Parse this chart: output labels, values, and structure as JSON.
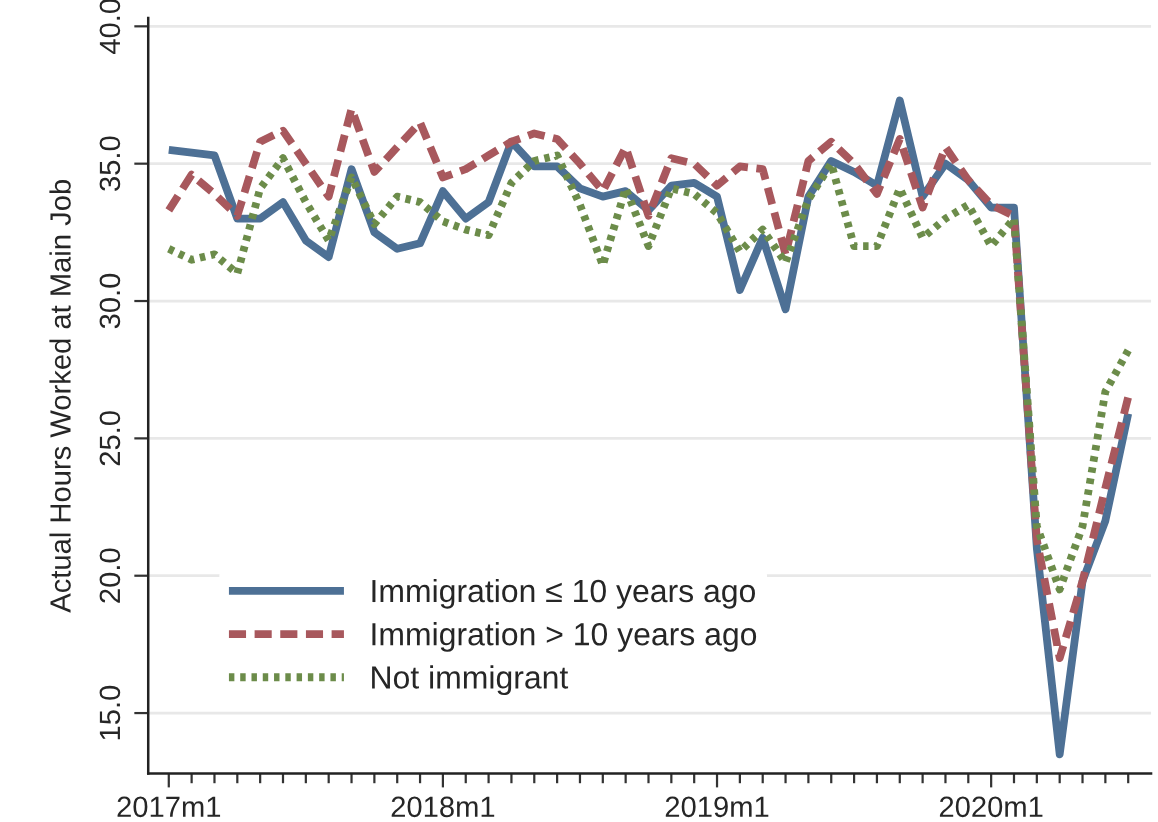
{
  "chart_data": {
    "type": "line",
    "ylabel": "Actual Hours Worked at Main Job",
    "categories": [
      "2017m1",
      null,
      null,
      null,
      null,
      null,
      null,
      null,
      null,
      null,
      null,
      null,
      "2018m1",
      null,
      null,
      null,
      null,
      null,
      null,
      null,
      null,
      null,
      null,
      null,
      "2019m1",
      null,
      null,
      null,
      null,
      null,
      null,
      null,
      null,
      null,
      null,
      null,
      "2020m1",
      null,
      null,
      null,
      null,
      null,
      null
    ],
    "series": [
      {
        "name": "Immigration ≤ 10 years ago",
        "color": "#4d7095",
        "line_style": "solid",
        "values": [
          35.5,
          35.4,
          35.3,
          33.0,
          33.0,
          33.6,
          32.2,
          31.6,
          34.8,
          32.5,
          31.9,
          32.1,
          34.0,
          33.0,
          33.6,
          35.8,
          34.9,
          34.9,
          34.1,
          33.8,
          34.0,
          33.3,
          34.2,
          34.3,
          33.8,
          30.4,
          32.3,
          29.7,
          33.8,
          35.1,
          34.7,
          34.2,
          37.3,
          33.8,
          35.0,
          34.4,
          33.4,
          33.4,
          21.0,
          13.5,
          19.8,
          22.0,
          25.9
        ]
      },
      {
        "name": "Immigration > 10 years ago",
        "color": "#a8585d",
        "line_style": "dashed",
        "values": [
          33.3,
          34.6,
          33.9,
          33.1,
          35.8,
          36.2,
          35.0,
          33.8,
          37.0,
          34.7,
          35.6,
          36.5,
          34.5,
          34.8,
          35.3,
          35.8,
          36.1,
          35.9,
          35.0,
          34.0,
          35.6,
          33.1,
          35.2,
          35.0,
          34.2,
          34.9,
          34.8,
          31.7,
          35.1,
          35.8,
          35.0,
          33.9,
          35.9,
          33.4,
          35.6,
          34.4,
          33.5,
          33.1,
          21.3,
          17.0,
          19.8,
          23.2,
          26.5
        ]
      },
      {
        "name": "Not immigrant",
        "color": "#6c8c4a",
        "line_style": "dotted",
        "values": [
          31.9,
          31.5,
          31.7,
          31.0,
          34.1,
          35.2,
          33.6,
          32.2,
          34.5,
          32.8,
          33.8,
          33.6,
          32.9,
          32.6,
          32.4,
          34.3,
          35.1,
          35.3,
          33.5,
          31.3,
          34.1,
          32.0,
          34.1,
          33.9,
          33.2,
          31.8,
          32.6,
          31.4,
          33.7,
          35.0,
          32.0,
          32.0,
          34.1,
          32.3,
          33.0,
          33.5,
          32.0,
          33.0,
          21.8,
          19.5,
          21.8,
          26.7,
          28.2
        ]
      }
    ],
    "ylim": [
      12.8,
      40.3
    ],
    "yticks": [
      {
        "value": 15,
        "label": "15.0"
      },
      {
        "value": 20,
        "label": "20.0"
      },
      {
        "value": 25,
        "label": "25.0"
      },
      {
        "value": 30,
        "label": "30.0"
      },
      {
        "value": 35,
        "label": "35.0"
      },
      {
        "value": 40,
        "label": "40.0"
      }
    ],
    "grid": "y",
    "legend": "bottom left"
  }
}
